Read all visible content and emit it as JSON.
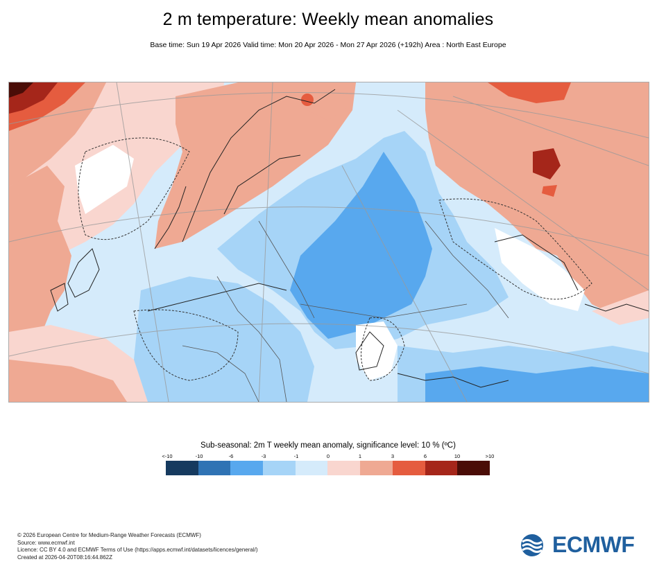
{
  "header": {
    "title": "2 m temperature: Weekly mean anomalies",
    "subtitle": "Base time: Sun 19 Apr 2026 Valid time: Mon 20 Apr 2026 - Mon 27 Apr 2026 (+192h) Area : North East Europe"
  },
  "legend": {
    "title": "Sub-seasonal: 2m T weekly mean anomaly, significance level: 10 % (ºC)",
    "ticks": [
      "<-10",
      "-10",
      "-6",
      "-3",
      "-1",
      "0",
      "1",
      "3",
      "6",
      "10",
      ">10"
    ],
    "colors": [
      "#163a5f",
      "#2f73b4",
      "#58a8ee",
      "#a6d4f7",
      "#d5ebfb",
      "#f9d6cf",
      "#efa993",
      "#e55c3f",
      "#a5261a",
      "#4a0d07"
    ]
  },
  "map_regions": {
    "scandinavia": "warm",
    "north_russia": "warm",
    "central_russia": "cold",
    "central_europe": "cool",
    "atlantic_west": "warm"
  },
  "footer": {
    "line1": "© 2026 European Centre for Medium-Range Weather Forecasts (ECMWF)",
    "line2": "Source: www.ecmwf.int",
    "line3": "Licence: CC BY 4.0 and ECMWF Terms of Use (https://apps.ecmwf.int/datasets/licences/general/)",
    "line4": "Created at 2026-04-20T08:16:44.862Z"
  },
  "brand": {
    "logo_text": "ECMWF",
    "color": "#1f5f9e"
  }
}
